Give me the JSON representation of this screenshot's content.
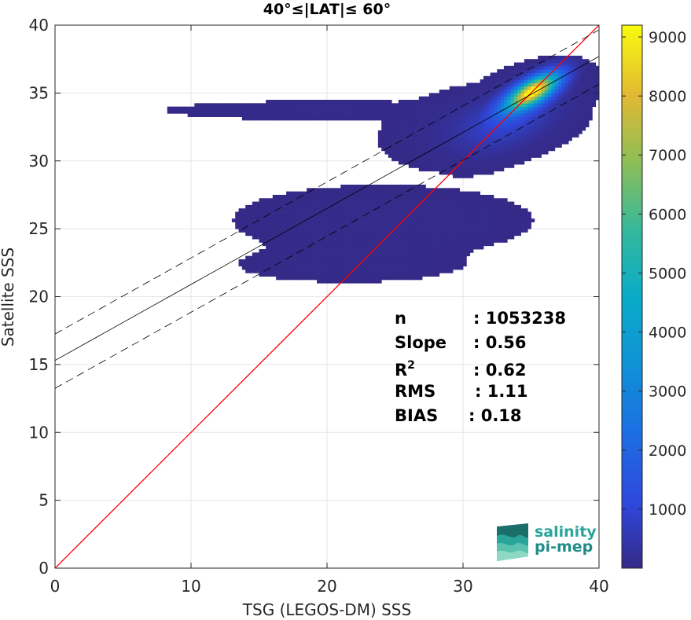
{
  "chart_data": {
    "type": "heatmap",
    "title": "40°≤|LAT|≤ 60°",
    "xlabel": "TSG (LEGOS-DM) SSS",
    "ylabel": "Satellite SSS",
    "xlim": [
      0,
      40
    ],
    "ylim": [
      0,
      40
    ],
    "xticks": [
      "0",
      "10",
      "20",
      "30",
      "40"
    ],
    "yticks": [
      "0",
      "5",
      "10",
      "15",
      "20",
      "25",
      "30",
      "35",
      "40"
    ],
    "grid": true,
    "colormap": "parula",
    "colorbar": {
      "min": 0,
      "max": 9200,
      "ticks": [
        "1000",
        "2000",
        "3000",
        "4000",
        "5000",
        "6000",
        "7000",
        "8000",
        "9000"
      ]
    },
    "density_regions": [
      {
        "x": 35.0,
        "y": 35.0,
        "sx": 1.3,
        "sy": 0.9,
        "rho": 0.7,
        "weight": 9200
      },
      {
        "x": 33.5,
        "y": 33.2,
        "sx": 2.2,
        "sy": 1.5,
        "rho": 0.55,
        "weight": 900
      },
      {
        "x": 31.5,
        "y": 32.5,
        "sx": 3.0,
        "sy": 1.3,
        "rho": 0.3,
        "weight": 250
      },
      {
        "x": 20.0,
        "y": 33.6,
        "sx": 6.0,
        "sy": 0.35,
        "rho": 0.0,
        "weight": 60
      },
      {
        "x": 24.0,
        "y": 25.5,
        "sx": 5.5,
        "sy": 1.3,
        "rho": 0.0,
        "weight": 60
      },
      {
        "x": 21.5,
        "y": 22.2,
        "sx": 4.5,
        "sy": 0.7,
        "rho": 0.0,
        "weight": 40
      }
    ],
    "reference_lines": [
      {
        "name": "1:1",
        "slope": 1.0,
        "intercept": 0.0,
        "color": "#ff0000",
        "style": "solid"
      },
      {
        "name": "fit",
        "slope": 0.56,
        "intercept": 15.3,
        "color": "#000000",
        "style": "solid"
      },
      {
        "name": "fit + RMS band",
        "slope": 0.56,
        "intercept": 17.25,
        "color": "#000000",
        "style": "dashed"
      },
      {
        "name": "fit - RMS band",
        "slope": 0.56,
        "intercept": 13.25,
        "color": "#000000",
        "style": "dashed"
      }
    ],
    "stats": [
      {
        "label": "n",
        "sup": "",
        "value": ": 1053238"
      },
      {
        "label": "Slope",
        "sup": "",
        "value": ": 0.56"
      },
      {
        "label": "R",
        "sup": "2",
        "value": ": 0.62"
      },
      {
        "label": "RMS",
        "sup": "",
        "value": ": 1.11"
      },
      {
        "label": "BIAS",
        "sup": "",
        "value": ": 0.18"
      }
    ]
  },
  "logo": {
    "line1": "salinity",
    "line2": "pi-mep",
    "colors": [
      "#1a6f6b",
      "#2aa59a",
      "#59c3b0",
      "#8fd8c4"
    ]
  }
}
